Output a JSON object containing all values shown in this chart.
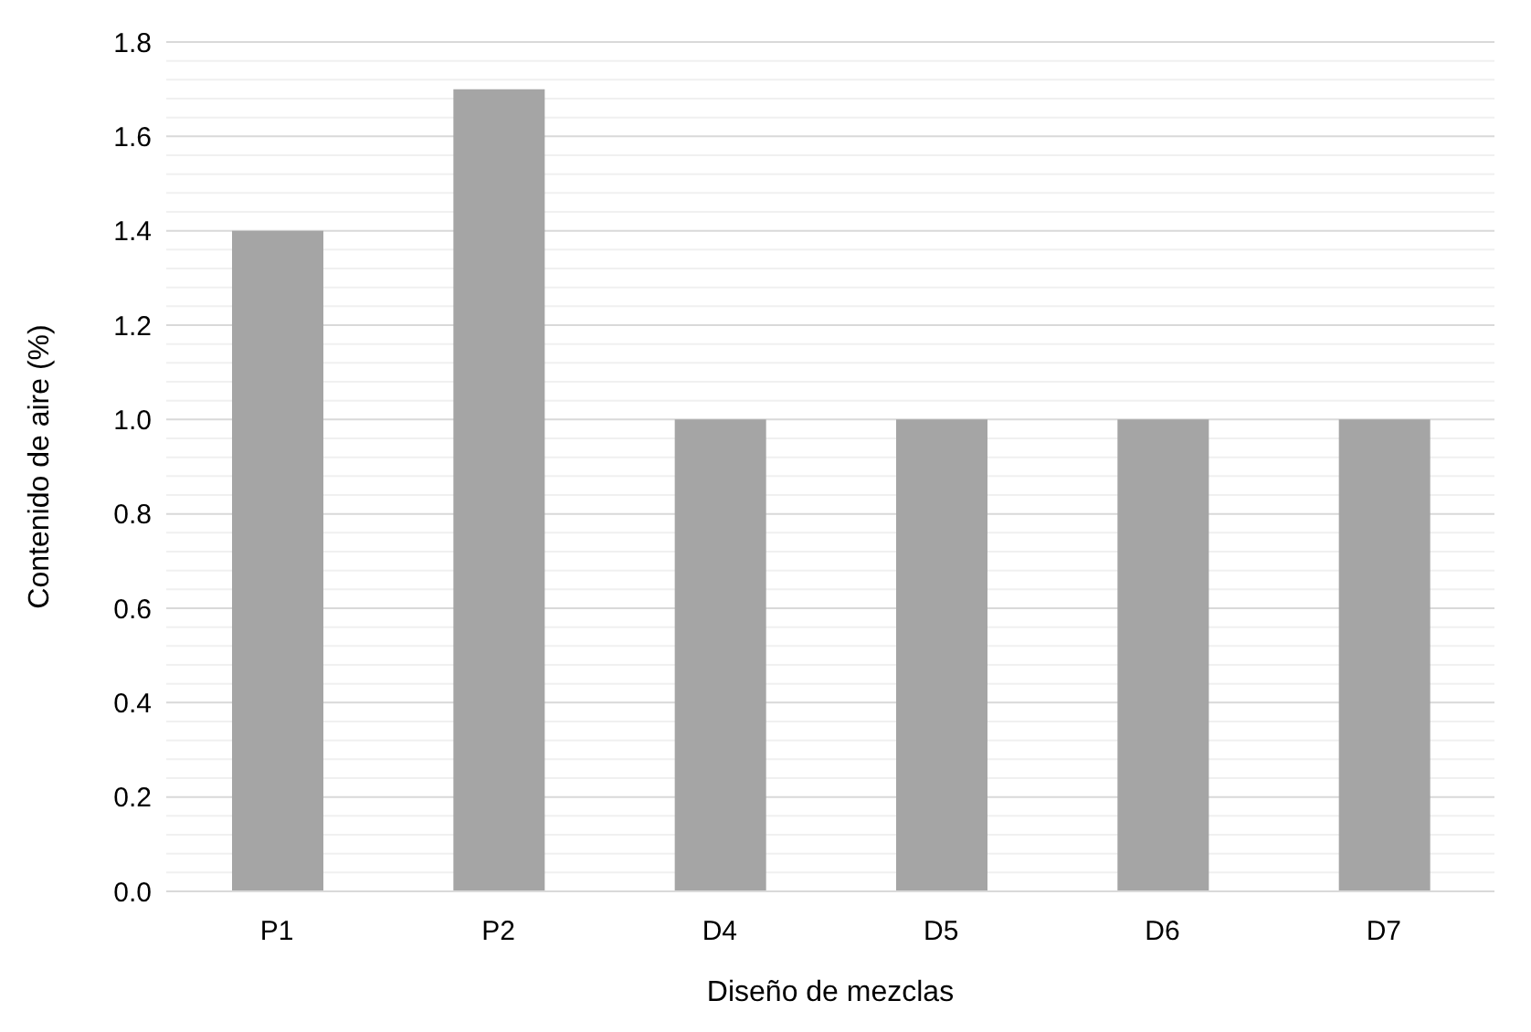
{
  "chart_data": {
    "type": "bar",
    "xlabel": "Diseño de mezclas",
    "ylabel": "Contenido de aire (%)",
    "categories": [
      "P1",
      "P2",
      "D4",
      "D5",
      "D6",
      "D7"
    ],
    "values": [
      1.4,
      1.7,
      1.0,
      1.0,
      1.0,
      1.0
    ],
    "color": "#a5a5a5",
    "ylim": [
      0,
      1.8
    ],
    "yticks": [
      {
        "value": 0,
        "label": "0.0"
      },
      {
        "value": 0.04,
        "label": null
      },
      {
        "value": 0.08,
        "label": null
      },
      {
        "value": 0.12,
        "label": null
      },
      {
        "value": 0.16,
        "label": null
      },
      {
        "value": 0.2,
        "label": "0.2"
      },
      {
        "value": 0.24,
        "label": null
      },
      {
        "value": 0.28,
        "label": null
      },
      {
        "value": 0.32,
        "label": null
      },
      {
        "value": 0.36,
        "label": null
      },
      {
        "value": 0.4,
        "label": "0.4"
      },
      {
        "value": 0.44,
        "label": null
      },
      {
        "value": 0.48,
        "label": null
      },
      {
        "value": 0.52,
        "label": null
      },
      {
        "value": 0.56,
        "label": null
      },
      {
        "value": 0.6,
        "label": "0.6"
      },
      {
        "value": 0.64,
        "label": null
      },
      {
        "value": 0.68,
        "label": null
      },
      {
        "value": 0.72,
        "label": null
      },
      {
        "value": 0.76,
        "label": null
      },
      {
        "value": 0.8,
        "label": "0.8"
      },
      {
        "value": 0.84,
        "label": null
      },
      {
        "value": 0.88,
        "label": null
      },
      {
        "value": 0.92,
        "label": null
      },
      {
        "value": 0.96,
        "label": null
      },
      {
        "value": 1.0,
        "label": "1.0"
      },
      {
        "value": 1.04,
        "label": null
      },
      {
        "value": 1.08,
        "label": null
      },
      {
        "value": 1.12,
        "label": null
      },
      {
        "value": 1.16,
        "label": null
      },
      {
        "value": 1.2,
        "label": "1.2"
      },
      {
        "value": 1.24,
        "label": null
      },
      {
        "value": 1.28,
        "label": null
      },
      {
        "value": 1.32,
        "label": null
      },
      {
        "value": 1.36,
        "label": null
      },
      {
        "value": 1.4,
        "label": "1.4"
      },
      {
        "value": 1.44,
        "label": null
      },
      {
        "value": 1.48,
        "label": null
      },
      {
        "value": 1.52,
        "label": null
      },
      {
        "value": 1.56,
        "label": null
      },
      {
        "value": 1.6,
        "label": "1.6"
      },
      {
        "value": 1.64,
        "label": null
      },
      {
        "value": 1.68,
        "label": null
      },
      {
        "value": 1.72,
        "label": null
      },
      {
        "value": 1.76,
        "label": null
      },
      {
        "value": 1.8,
        "label": "1.8"
      }
    ],
    "grid": "y"
  }
}
